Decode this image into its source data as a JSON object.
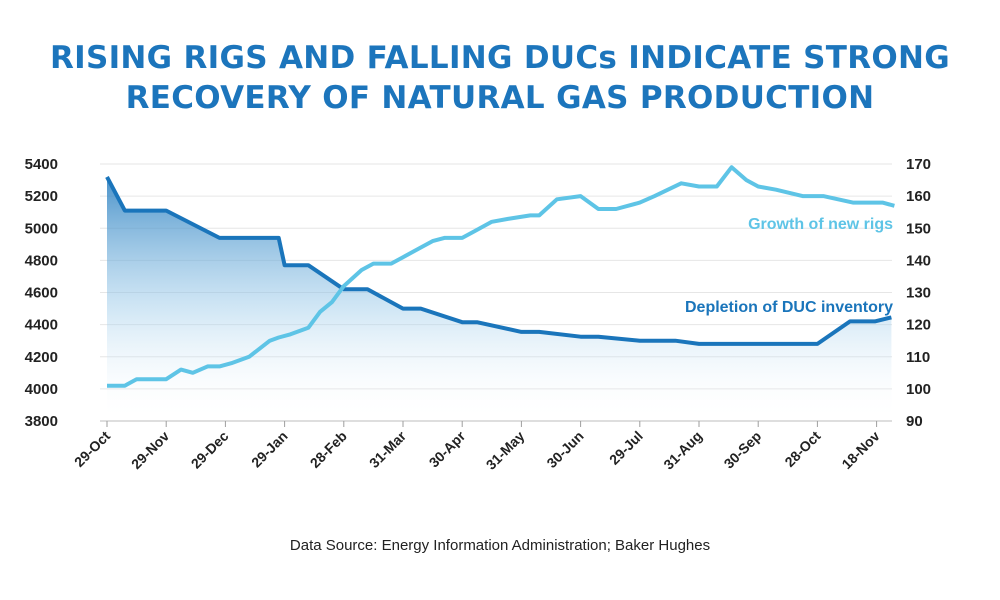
{
  "title_lines": [
    "RISING RIGS AND FALLING DUCs INDICATE STRONG",
    "RECOVERY OF NATURAL GAS PRODUCTION"
  ],
  "source": "Data Source: Energy Information Administration; Baker Hughes",
  "colors": {
    "title": "#1c75bc",
    "duc": "#1a75bb",
    "rigs": "#5ec4e6",
    "grid": "#e6e6e6"
  },
  "chart_data": {
    "type": "line",
    "x_tick_labels": [
      "29-Oct",
      "29-Nov",
      "29-Dec",
      "29-Jan",
      "28-Feb",
      "31-Mar",
      "30-Apr",
      "31-May",
      "30-Jun",
      "29-Jul",
      "31-Aug",
      "30-Sep",
      "28-Oct",
      "18-Nov"
    ],
    "y_left": {
      "range": [
        3800,
        5400
      ],
      "ticks": [
        3800,
        4000,
        4200,
        4400,
        4600,
        4800,
        5000,
        5200,
        5400
      ]
    },
    "y_right": {
      "range": [
        90,
        170
      ],
      "ticks": [
        90,
        100,
        110,
        120,
        130,
        140,
        150,
        160,
        170
      ]
    },
    "grid": "horizontal",
    "series": [
      {
        "name": "Depletion of DUC inventory",
        "axis": "left",
        "style": "step-area",
        "x": [
          0,
          0.3,
          1,
          1.9,
          2,
          2.9,
          3,
          3.4,
          4,
          4.4,
          5,
          5.3,
          6,
          6.25,
          7,
          7.3,
          8,
          8.3,
          9,
          9.6,
          10,
          10.5,
          11,
          11.6,
          12,
          12.55,
          12.97,
          13.25
        ],
        "values": [
          5320,
          5110,
          5110,
          4940,
          4940,
          4940,
          4770,
          4770,
          4620,
          4620,
          4500,
          4500,
          4415,
          4415,
          4355,
          4355,
          4325,
          4325,
          4300,
          4300,
          4280,
          4280,
          4280,
          4280,
          4280,
          4420,
          4420,
          4445
        ],
        "last_value": 4445
      },
      {
        "name": "Growth of new rigs",
        "axis": "right",
        "style": "line",
        "x": [
          0,
          0.3,
          0.5,
          1,
          1.25,
          1.45,
          1.7,
          1.9,
          2.1,
          2.4,
          2.75,
          2.9,
          3.1,
          3.4,
          3.6,
          3.8,
          4,
          4.3,
          4.5,
          4.8,
          5,
          5.3,
          5.5,
          5.7,
          6,
          6.2,
          6.5,
          6.8,
          7.15,
          7.3,
          7.6,
          8,
          8.3,
          8.6,
          9,
          9.25,
          9.7,
          10,
          10.3,
          10.55,
          10.8,
          11,
          11.3,
          11.75,
          12.1,
          12.6,
          13.1,
          13.3
        ],
        "values": [
          101,
          101,
          103,
          103,
          106,
          105,
          107,
          107,
          108,
          110,
          115,
          116,
          117,
          119,
          124,
          127,
          132,
          137,
          139,
          139,
          141,
          144,
          146,
          147,
          147,
          149,
          152,
          153,
          154,
          154,
          159,
          160,
          156,
          156,
          158,
          160,
          164,
          163,
          163,
          169,
          165,
          163,
          162,
          160,
          160,
          158,
          158,
          157
        ],
        "last_value": 157
      }
    ]
  }
}
